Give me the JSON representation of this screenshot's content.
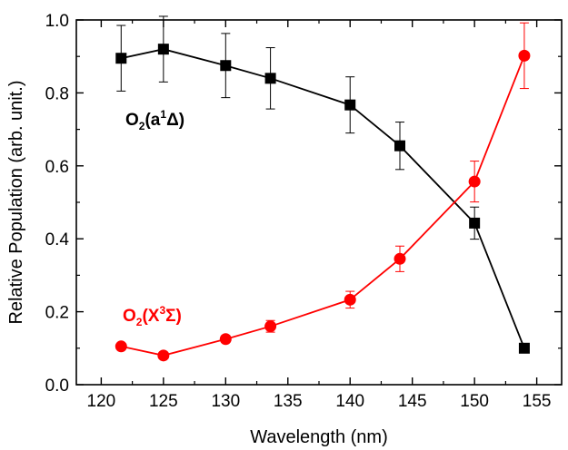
{
  "chart_data": {
    "type": "line",
    "xlabel": "Wavelength (nm)",
    "ylabel": "Relative Population (arb. unit.)",
    "xlim": [
      118,
      157
    ],
    "ylim": [
      0.0,
      1.0
    ],
    "x_ticks": [
      120,
      125,
      130,
      135,
      140,
      145,
      150,
      155
    ],
    "y_ticks": [
      0.0,
      0.2,
      0.4,
      0.6,
      0.8,
      1.0
    ],
    "x_tick_labels": [
      "120",
      "125",
      "130",
      "135",
      "140",
      "145",
      "150",
      "155"
    ],
    "y_tick_labels": [
      "0.0",
      "0.2",
      "0.4",
      "0.6",
      "0.8",
      "1.0"
    ],
    "grid": false,
    "series": [
      {
        "label_parts": {
          "base": "O",
          "sub": "2",
          "open": "(a",
          "sup": "1",
          "close": "Δ)"
        },
        "color": "#000000",
        "marker": "square",
        "points": [
          {
            "x": 121.6,
            "y": 0.895,
            "err": 0.09
          },
          {
            "x": 125.0,
            "y": 0.92,
            "err": 0.09
          },
          {
            "x": 130.0,
            "y": 0.875,
            "err": 0.088
          },
          {
            "x": 133.6,
            "y": 0.84,
            "err": 0.084
          },
          {
            "x": 140.0,
            "y": 0.767,
            "err": 0.077
          },
          {
            "x": 144.0,
            "y": 0.655,
            "err": 0.065
          },
          {
            "x": 150.0,
            "y": 0.443,
            "err": 0.044
          },
          {
            "x": 154.0,
            "y": 0.1,
            "err": 0.0
          }
        ]
      },
      {
        "label_parts": {
          "base": "O",
          "sub": "2",
          "open": "(X",
          "sup": "3",
          "close": "Σ)"
        },
        "color": "#ff0000",
        "marker": "circle",
        "points": [
          {
            "x": 121.6,
            "y": 0.105,
            "err": 0.0
          },
          {
            "x": 125.0,
            "y": 0.08,
            "err": 0.0
          },
          {
            "x": 130.0,
            "y": 0.125,
            "err": 0.0
          },
          {
            "x": 133.6,
            "y": 0.16,
            "err": 0.016
          },
          {
            "x": 140.0,
            "y": 0.233,
            "err": 0.023
          },
          {
            "x": 144.0,
            "y": 0.345,
            "err": 0.035
          },
          {
            "x": 150.0,
            "y": 0.557,
            "err": 0.056
          },
          {
            "x": 154.0,
            "y": 0.902,
            "err": 0.09
          }
        ]
      }
    ]
  }
}
